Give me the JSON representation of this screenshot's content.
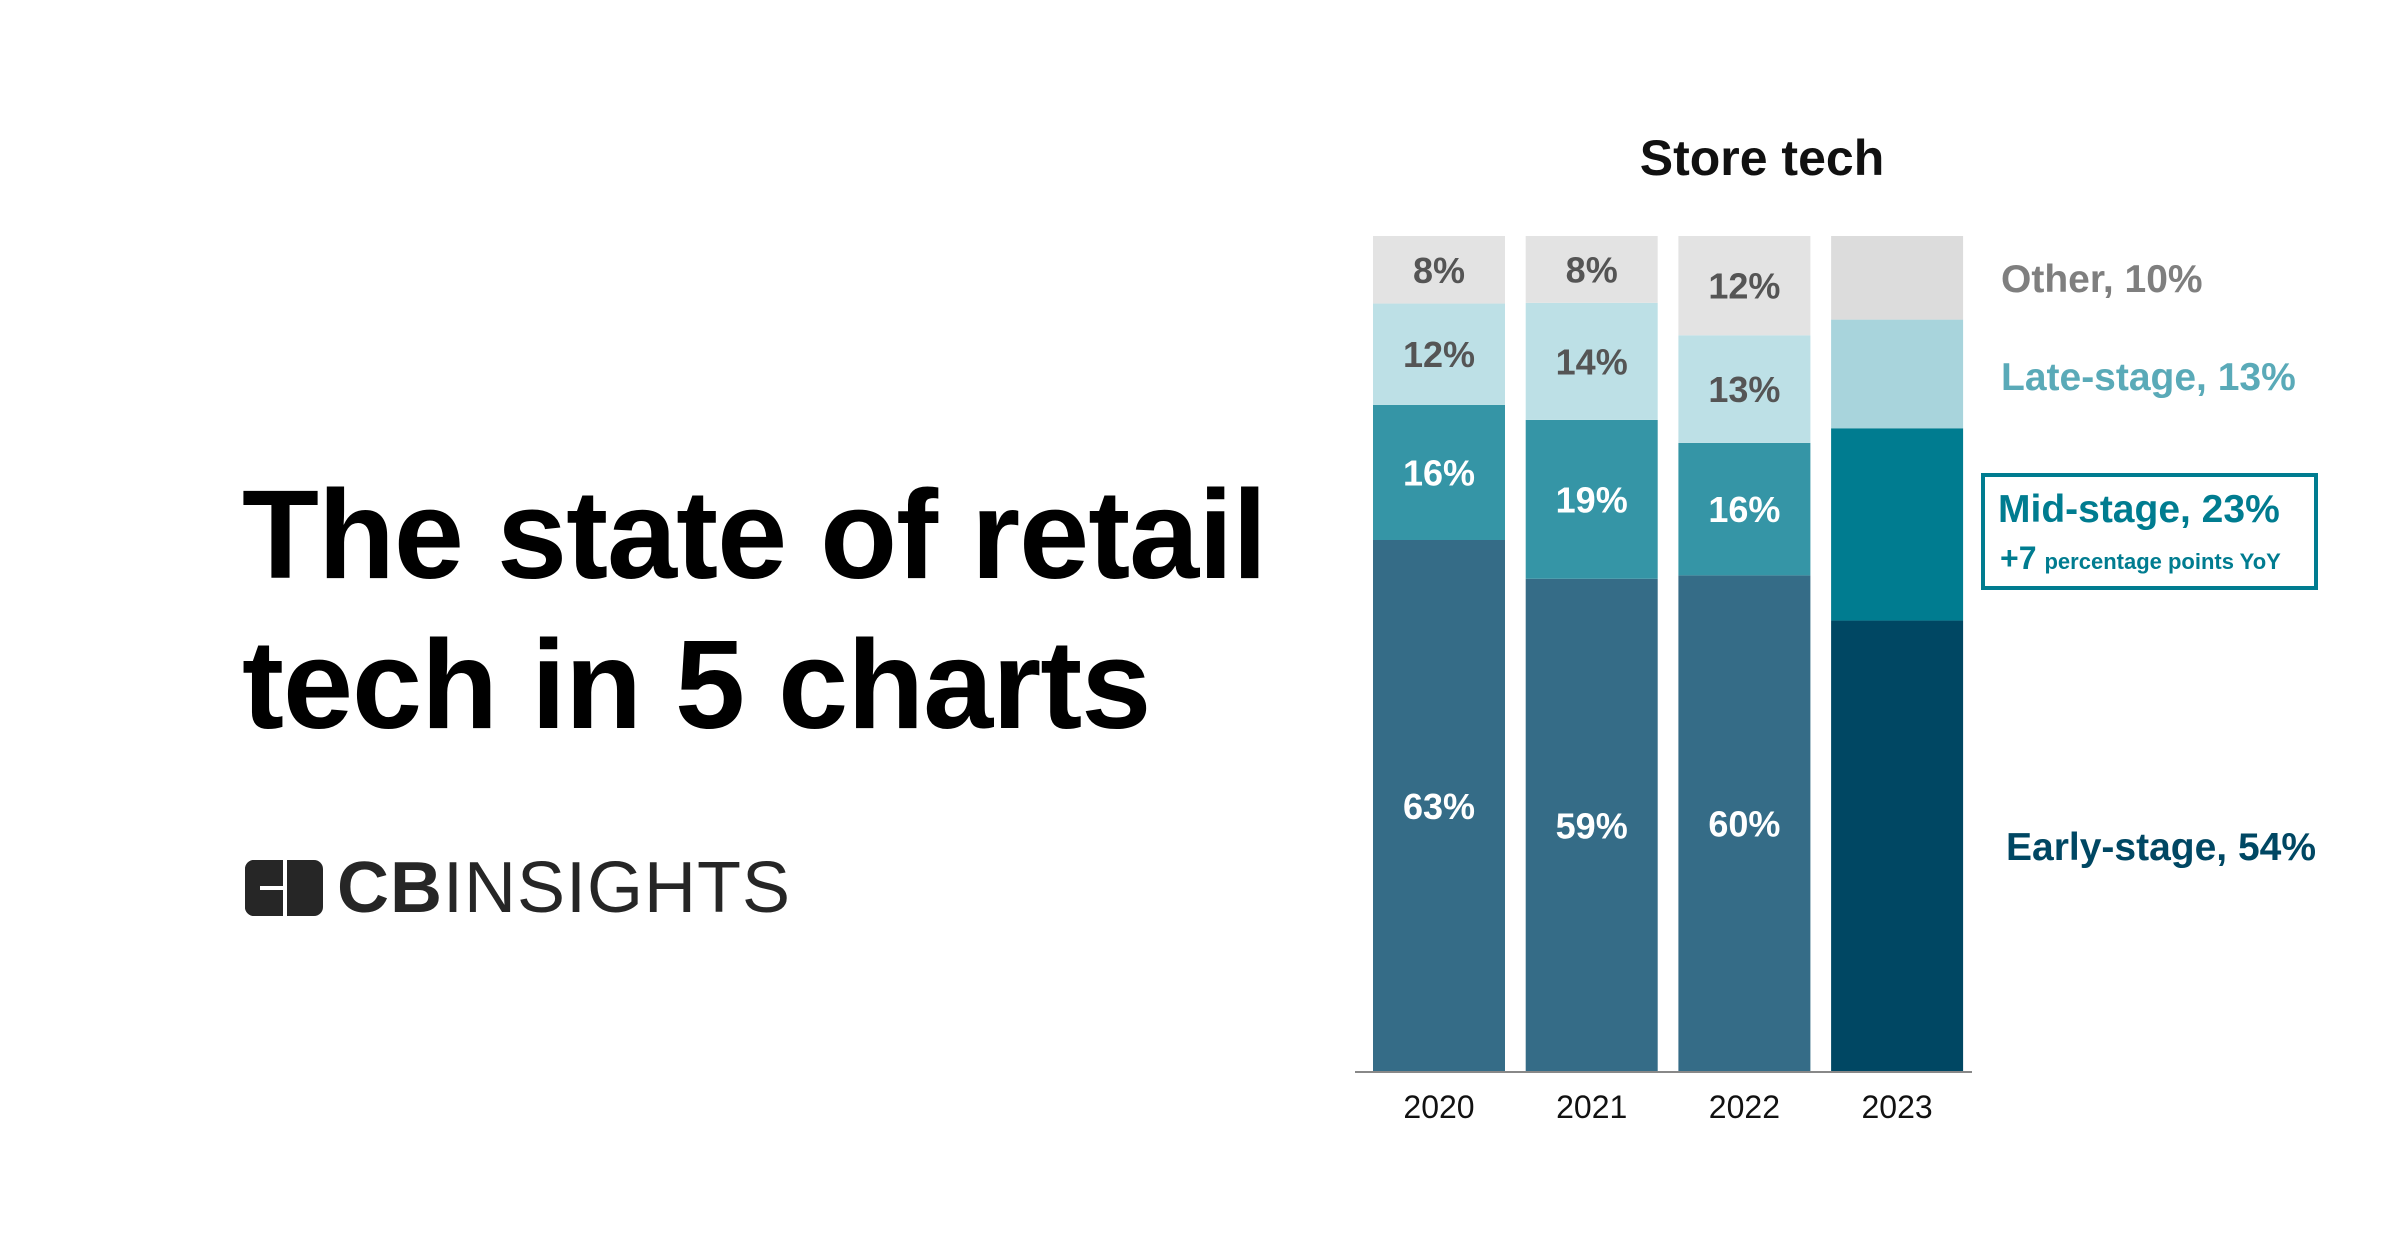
{
  "headline": {
    "line1": "The state of retail",
    "line2": "tech in 5 charts"
  },
  "logo": {
    "text_bold": "CB",
    "text_light": "INSIGHTS"
  },
  "chart_data": {
    "type": "bar",
    "stacked": true,
    "title": "Store tech",
    "categories": [
      "2020",
      "2021",
      "2022",
      "2023"
    ],
    "series": [
      {
        "name": "Early-stage",
        "values": [
          63,
          59,
          60,
          54
        ],
        "color": "#356c87",
        "highlight_color": "#004763",
        "label_color": "#ffffff"
      },
      {
        "name": "Mid-stage",
        "values": [
          16,
          19,
          16,
          23
        ],
        "color": "#3595a6",
        "highlight_color": "#007c90",
        "label_color": "#ffffff"
      },
      {
        "name": "Late-stage",
        "values": [
          12,
          14,
          13,
          13
        ],
        "color": "#bde0e6",
        "highlight_color": "#a8d4dc",
        "label_color": "#555555"
      },
      {
        "name": "Other",
        "values": [
          8,
          8,
          12,
          10
        ],
        "color": "#e3e3e3",
        "highlight_color": "#dcdcdc",
        "label_color": "#555555"
      }
    ],
    "data_labels": [
      [
        "63%",
        "59%",
        "60%",
        null
      ],
      [
        "16%",
        "19%",
        "16%",
        null
      ],
      [
        "12%",
        "14%",
        "13%",
        null
      ],
      [
        "8%",
        "8%",
        "12%",
        null
      ]
    ],
    "legend": [
      {
        "text": "Early-stage, 54%",
        "color": "#004763"
      },
      {
        "text": "Mid-stage, 23%",
        "color": "#007c90",
        "boxed": true,
        "note_strong": "+7",
        "note": "percentage points YoY"
      },
      {
        "text": "Late-stage, 13%",
        "color": "#5aaab8"
      },
      {
        "text": "Other, 10%",
        "color": "#7f7f7f"
      }
    ],
    "legend_placement": "right",
    "ylim": [
      0,
      100
    ],
    "grid": false,
    "xlabel": "",
    "ylabel": ""
  }
}
